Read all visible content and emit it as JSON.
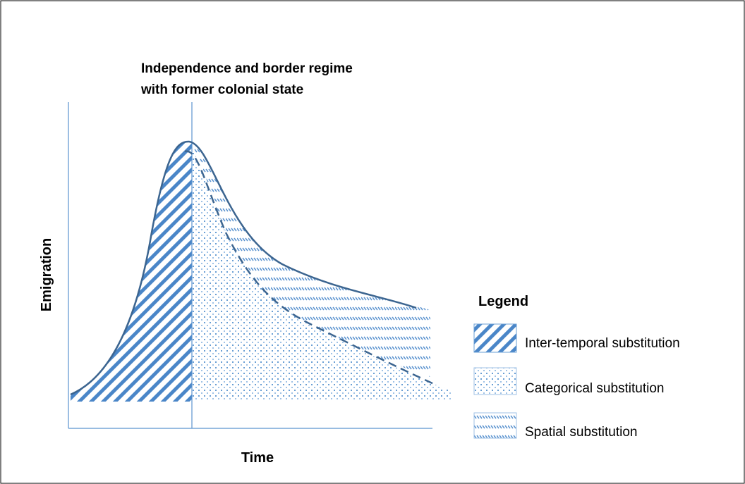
{
  "annotation": {
    "lines": [
      "Independence and border regime",
      "with former colonial state"
    ]
  },
  "y_axis_label": "Emigration",
  "x_axis_label": "Time",
  "legend": {
    "title": "Legend",
    "items": [
      "Inter-temporal substitution",
      "Categorical substitution",
      "Spatial substitution"
    ]
  }
}
